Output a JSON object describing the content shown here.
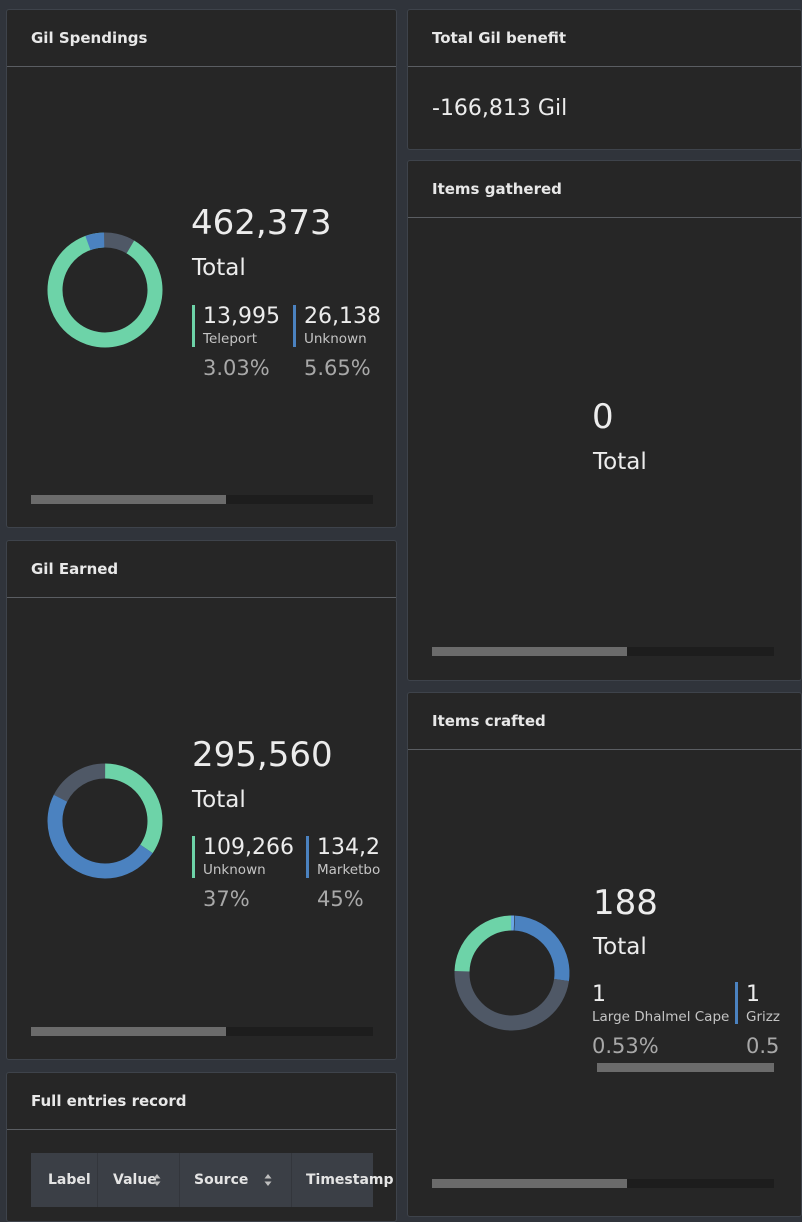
{
  "colors": {
    "green": "#6dd3a8",
    "blue": "#4b82c0",
    "slate": "#4f5866",
    "light_blue": "#6aa7e6"
  },
  "gil_spendings": {
    "title": "Gil Spendings",
    "total_value": "462,373",
    "total_label": "Total",
    "legend": [
      {
        "value": "13,995",
        "name": "Teleport",
        "pct": "3.03%",
        "color": "#6dd3a8"
      },
      {
        "value": "26,138",
        "name": "Unknown",
        "pct": "5.65%",
        "color": "#4b82c0"
      }
    ],
    "scroll_fraction": 0.57
  },
  "total_gil_benefit": {
    "title": "Total Gil benefit",
    "value": "-166,813 Gil"
  },
  "items_gathered": {
    "title": "Items gathered",
    "total_value": "0",
    "total_label": "Total",
    "scroll_fraction": 0.57
  },
  "gil_earned": {
    "title": "Gil Earned",
    "total_value": "295,560",
    "total_label": "Total",
    "legend": [
      {
        "value": "109,266",
        "name": "Unknown",
        "pct": "37%",
        "color": "#6dd3a8"
      },
      {
        "value": "134,2",
        "name": "Marketbo",
        "pct": "45%",
        "color": "#4b82c0"
      }
    ],
    "scroll_fraction": 0.57
  },
  "items_crafted": {
    "title": "Items crafted",
    "total_value": "188",
    "total_label": "Total",
    "legend": [
      {
        "value": "1",
        "name": "Large Dhalmel Cape",
        "pct": "0.53%",
        "color": "#6dd3a8"
      },
      {
        "value": "1",
        "name": "Grizz",
        "pct": "0.5",
        "color": "#4b82c0"
      }
    ],
    "scroll_fraction": 0.57
  },
  "full_entries": {
    "title": "Full entries record",
    "columns": [
      "Label",
      "Value",
      "Source",
      "Timestamp"
    ]
  }
}
